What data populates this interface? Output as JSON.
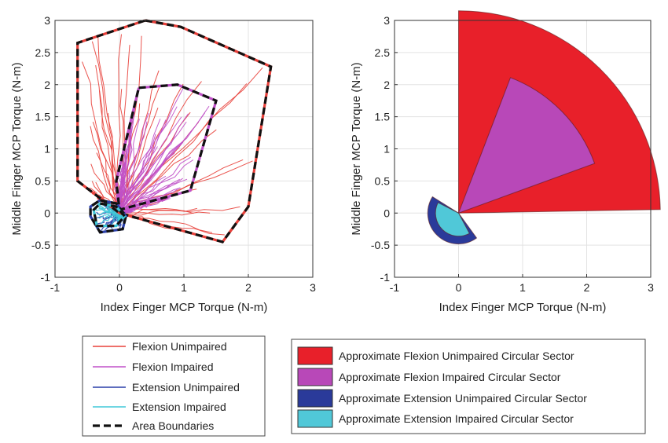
{
  "colors": {
    "flexion_unimpaired": "#e8403a",
    "flexion_impaired": "#c050c8",
    "extension_unimpaired": "#2a3fa8",
    "extension_impaired": "#40c8d8",
    "sector_flexion_unimpaired": "#e8202a",
    "sector_flexion_impaired": "#b848b8",
    "sector_extension_unimpaired": "#2a3a9a",
    "sector_extension_impaired": "#50c8d8",
    "boundary_black": "#111111",
    "boundary_red": "#e8403a",
    "grid": "#e3e3e3"
  },
  "chart_data": [
    {
      "type": "line",
      "xlabel": "Index Finger MCP Torque (N-m)",
      "ylabel": "Middle Finger MCP Torque (N-m)",
      "xlim": [
        -1,
        3
      ],
      "ylim": [
        -1,
        3
      ],
      "xticks": [
        "-1",
        "0",
        "1",
        "2",
        "3"
      ],
      "yticks": [
        "-1",
        "-0.5",
        "0",
        "0.5",
        "1",
        "1.5",
        "2",
        "2.5",
        "3"
      ],
      "grid": true,
      "boundaries": [
        {
          "series": "Flexion Unimpaired",
          "x": [
            0.4,
            0.95,
            2.35,
            2.0,
            1.6,
            0.0,
            -0.65,
            -0.65,
            0.4
          ],
          "y": [
            3.0,
            2.9,
            2.28,
            0.1,
            -0.45,
            0.0,
            0.5,
            2.65,
            3.0
          ]
        },
        {
          "series": "Flexion Impaired",
          "x": [
            0.3,
            0.9,
            1.5,
            1.1,
            0.0,
            -0.05,
            0.3
          ],
          "y": [
            1.95,
            2.0,
            1.75,
            0.35,
            0.05,
            0.5,
            1.95
          ]
        },
        {
          "series": "Extension Unimpaired",
          "x": [
            -0.3,
            -0.05,
            0.1,
            0.05,
            -0.3,
            -0.45,
            -0.45,
            -0.3
          ],
          "y": [
            0.2,
            0.15,
            -0.05,
            -0.25,
            -0.3,
            -0.05,
            0.1,
            0.2
          ]
        },
        {
          "series": "Extension Impaired",
          "x": [
            -0.3,
            -0.05,
            0.08,
            -0.05,
            -0.35,
            -0.4,
            -0.3
          ],
          "y": [
            0.15,
            0.1,
            -0.05,
            -0.2,
            -0.2,
            0.05,
            0.15
          ]
        }
      ]
    },
    {
      "type": "area",
      "xlabel": "Index Finger MCP Torque (N-m)",
      "ylabel": "Middle Finger MCP Torque (N-m)",
      "xlim": [
        -1,
        3
      ],
      "ylim": [
        -1,
        3
      ],
      "xticks": [
        "-1",
        "0",
        "1",
        "2",
        "3"
      ],
      "yticks": [
        "-1",
        "-0.5",
        "0",
        "0.5",
        "1",
        "1.5",
        "2",
        "2.5",
        "3"
      ],
      "grid": true,
      "sectors": [
        {
          "name": "Approximate Flexion Unimpaired Circular Sector",
          "radius": 3.15,
          "start_deg": 1,
          "end_deg": 90
        },
        {
          "name": "Approximate Flexion Impaired Circular Sector",
          "radius": 2.26,
          "start_deg": 20,
          "end_deg": 69
        },
        {
          "name": "Approximate Extension Unimpaired Circular Sector",
          "radius": 0.48,
          "start_deg": 148,
          "end_deg": 306
        },
        {
          "name": "Approximate Extension Impaired Circular Sector",
          "radius": 0.36,
          "start_deg": 153,
          "end_deg": 298
        }
      ]
    }
  ],
  "legend_left": [
    {
      "label": "Flexion Unimpaired",
      "style": "thin"
    },
    {
      "label": "Flexion Impaired",
      "style": "thin"
    },
    {
      "label": "Extension Unimpaired",
      "style": "thin"
    },
    {
      "label": "Extension Impaired",
      "style": "thin"
    },
    {
      "label": "Area Boundaries",
      "style": "dashed"
    }
  ],
  "legend_right": [
    {
      "label": "Approximate Flexion Unimpaired Circular Sector"
    },
    {
      "label": "Approximate Flexion Impaired Circular Sector"
    },
    {
      "label": "Approximate Extension Unimpaired Circular Sector"
    },
    {
      "label": "Approximate Extension Impaired Circular Sector"
    }
  ]
}
